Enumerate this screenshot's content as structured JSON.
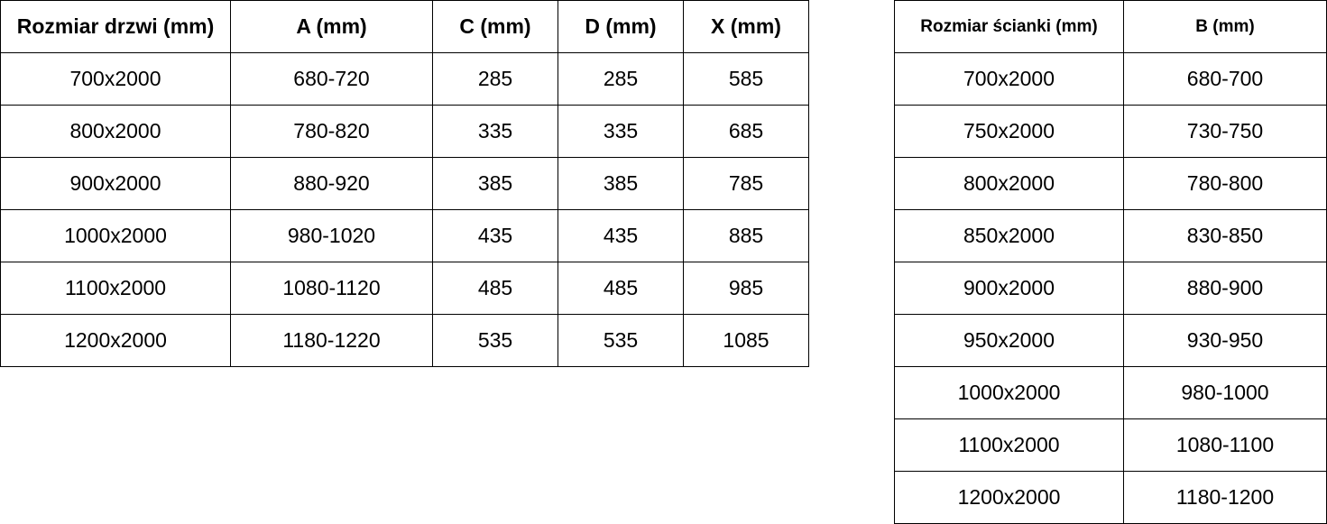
{
  "door_table": {
    "headers": [
      "Rozmiar drzwi (mm)",
      "A (mm)",
      "C (mm)",
      "D (mm)",
      "X (mm)"
    ],
    "rows": [
      [
        "700x2000",
        "680-720",
        "285",
        "285",
        "585"
      ],
      [
        "800x2000",
        "780-820",
        "335",
        "335",
        "685"
      ],
      [
        "900x2000",
        "880-920",
        "385",
        "385",
        "785"
      ],
      [
        "1000x2000",
        "980-1020",
        "435",
        "435",
        "885"
      ],
      [
        "1100x2000",
        "1080-1120",
        "485",
        "485",
        "985"
      ],
      [
        "1200x2000",
        "1180-1220",
        "535",
        "535",
        "1085"
      ]
    ]
  },
  "wall_table": {
    "headers": [
      "Rozmiar ścianki (mm)",
      "B (mm)"
    ],
    "rows": [
      [
        "700x2000",
        "680-700"
      ],
      [
        "750x2000",
        "730-750"
      ],
      [
        "800x2000",
        "780-800"
      ],
      [
        "850x2000",
        "830-850"
      ],
      [
        "900x2000",
        "880-900"
      ],
      [
        "950x2000",
        "930-950"
      ],
      [
        "1000x2000",
        "980-1000"
      ],
      [
        "1100x2000",
        "1080-1100"
      ],
      [
        "1200x2000",
        "1180-1200"
      ]
    ]
  }
}
